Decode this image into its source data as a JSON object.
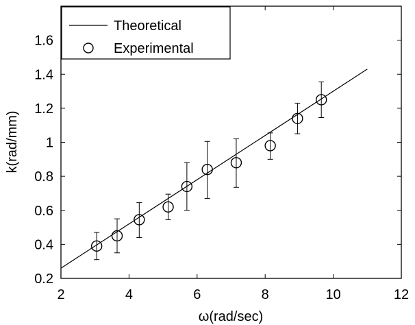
{
  "chart_data": {
    "type": "scatter",
    "xlabel": "ω(rad/sec)",
    "ylabel": "k(rad/mm)",
    "xlim": [
      2,
      12
    ],
    "ylim": [
      0.2,
      1.8
    ],
    "xticks": [
      2,
      4,
      6,
      8,
      10,
      12
    ],
    "yticks": [
      0.2,
      0.4,
      0.6,
      0.8,
      1,
      1.2,
      1.4,
      1.6
    ],
    "grid": false,
    "legend_position": "top-left",
    "series": [
      {
        "name": "Theoretical",
        "kind": "line",
        "x": [
          2,
          11
        ],
        "y": [
          0.26,
          1.43
        ]
      },
      {
        "name": "Experimental",
        "kind": "points-with-error-bars",
        "marker": "open-circle",
        "x": [
          3.05,
          3.65,
          4.3,
          5.15,
          5.7,
          6.3,
          7.15,
          8.15,
          8.95,
          9.65
        ],
        "y": [
          0.39,
          0.45,
          0.545,
          0.62,
          0.74,
          0.84,
          0.88,
          0.98,
          1.14,
          1.25
        ],
        "err_low": [
          0.31,
          0.35,
          0.44,
          0.545,
          0.6,
          0.67,
          0.735,
          0.9,
          1.05,
          1.145
        ],
        "err_high": [
          0.47,
          0.55,
          0.645,
          0.695,
          0.88,
          1.005,
          1.02,
          1.055,
          1.23,
          1.355
        ]
      }
    ]
  }
}
